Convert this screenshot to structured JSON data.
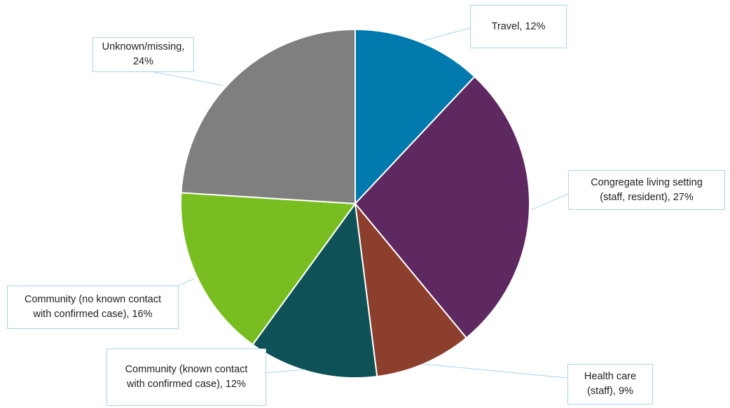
{
  "chart_data": {
    "type": "pie",
    "title": "",
    "slices": [
      {
        "name": "Travel",
        "value": 12,
        "color": "#0079ad",
        "label_lines": [
          "Travel, 12%"
        ]
      },
      {
        "name": "Congregate living setting (staff, resident)",
        "value": 27,
        "color": "#5e2860",
        "label_lines": [
          "Congregate living setting",
          "(staff, resident), 27%"
        ]
      },
      {
        "name": "Health care (staff)",
        "value": 9,
        "color": "#8b3f2c",
        "label_lines": [
          "Health care",
          "(staff), 9%"
        ]
      },
      {
        "name": "Community (known contact with confirmed case)",
        "value": 12,
        "color": "#0e5157",
        "label_lines": [
          "Community (known contact",
          "with confirmed case), 12%"
        ]
      },
      {
        "name": "Community (no known contact with confirmed case)",
        "value": 16,
        "color": "#78be20",
        "label_lines": [
          "Community (no known contact",
          "with confirmed case), 16%"
        ]
      },
      {
        "name": "Unknown/missing",
        "value": 24,
        "color": "#7f7f7f",
        "label_lines": [
          "Unknown/missing,",
          "24%"
        ]
      }
    ],
    "legend": "none",
    "label_style": "callout boxes with leader lines",
    "leader_line_color": "#a9d3ee"
  }
}
